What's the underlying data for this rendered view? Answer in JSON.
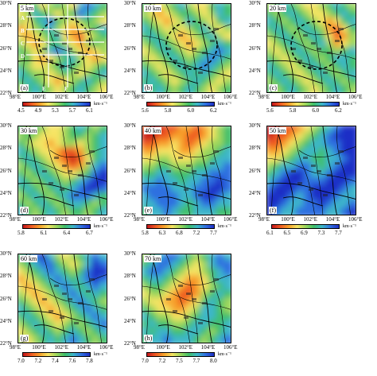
{
  "panels": [
    {
      "id": "a",
      "label": "(a)",
      "depth": "5 km",
      "cbar_ticks": [
        "4.5",
        "4.9",
        "5.3",
        "5.7",
        "6.1"
      ],
      "has_profiles": true
    },
    {
      "id": "b",
      "label": "(b)",
      "depth": "10 km",
      "cbar_ticks": [
        "5.6",
        "5.8",
        "6.0",
        "6.2"
      ],
      "has_profiles": false
    },
    {
      "id": "c",
      "label": "(c)",
      "depth": "20 km",
      "cbar_ticks": [
        "5.6",
        "5.8",
        "6.0",
        "6.2"
      ],
      "has_profiles": false
    },
    {
      "id": "d",
      "label": "(d)",
      "depth": "30 km",
      "cbar_ticks": [
        "5.8",
        "6.1",
        "6.4",
        "6.7"
      ],
      "has_profiles": false
    },
    {
      "id": "e",
      "label": "(e)",
      "depth": "40 km",
      "cbar_ticks": [
        "5.8",
        "6.3",
        "6.8",
        "7.2",
        "7.7"
      ],
      "has_profiles": false
    },
    {
      "id": "f",
      "label": "(f)",
      "depth": "50 km",
      "cbar_ticks": [
        "6.1",
        "6.5",
        "6.9",
        "7.3",
        "7.7"
      ],
      "has_profiles": false
    },
    {
      "id": "g",
      "label": "(g)",
      "depth": "60 km",
      "cbar_ticks": [
        "7.0",
        "7.2",
        "7.4",
        "7.6",
        "7.8"
      ],
      "has_profiles": false
    },
    {
      "id": "h",
      "label": "(h)",
      "depth": "70 km",
      "cbar_ticks": [
        "7.0",
        "7.2",
        "7.5",
        "7.7",
        "8.0"
      ],
      "has_profiles": false
    }
  ],
  "axes": {
    "y_ticks": [
      "30°N",
      "28°N",
      "26°N",
      "24°N",
      "22°N"
    ],
    "x_ticks": [
      "98°E",
      "100°E",
      "102°E",
      "104°E",
      "106°E"
    ]
  },
  "colorbar_unit": "km·s⁻¹",
  "profile_labels": [
    "A",
    "B",
    "C",
    "D",
    "E",
    "F"
  ],
  "colors": {
    "low": "#d81e1e",
    "mid_low": "#f5a623",
    "mid": "#f4f07a",
    "mid_high": "#7fd35f",
    "high_low": "#3bb6c9",
    "high": "#1c3fd3"
  },
  "color_scale": [
    "#c4161c",
    "#ef5a23",
    "#f7a12a",
    "#f6e463",
    "#9ed75c",
    "#3fbf6a",
    "#3db6c9",
    "#2f6fe0",
    "#1f2fc6"
  ]
}
